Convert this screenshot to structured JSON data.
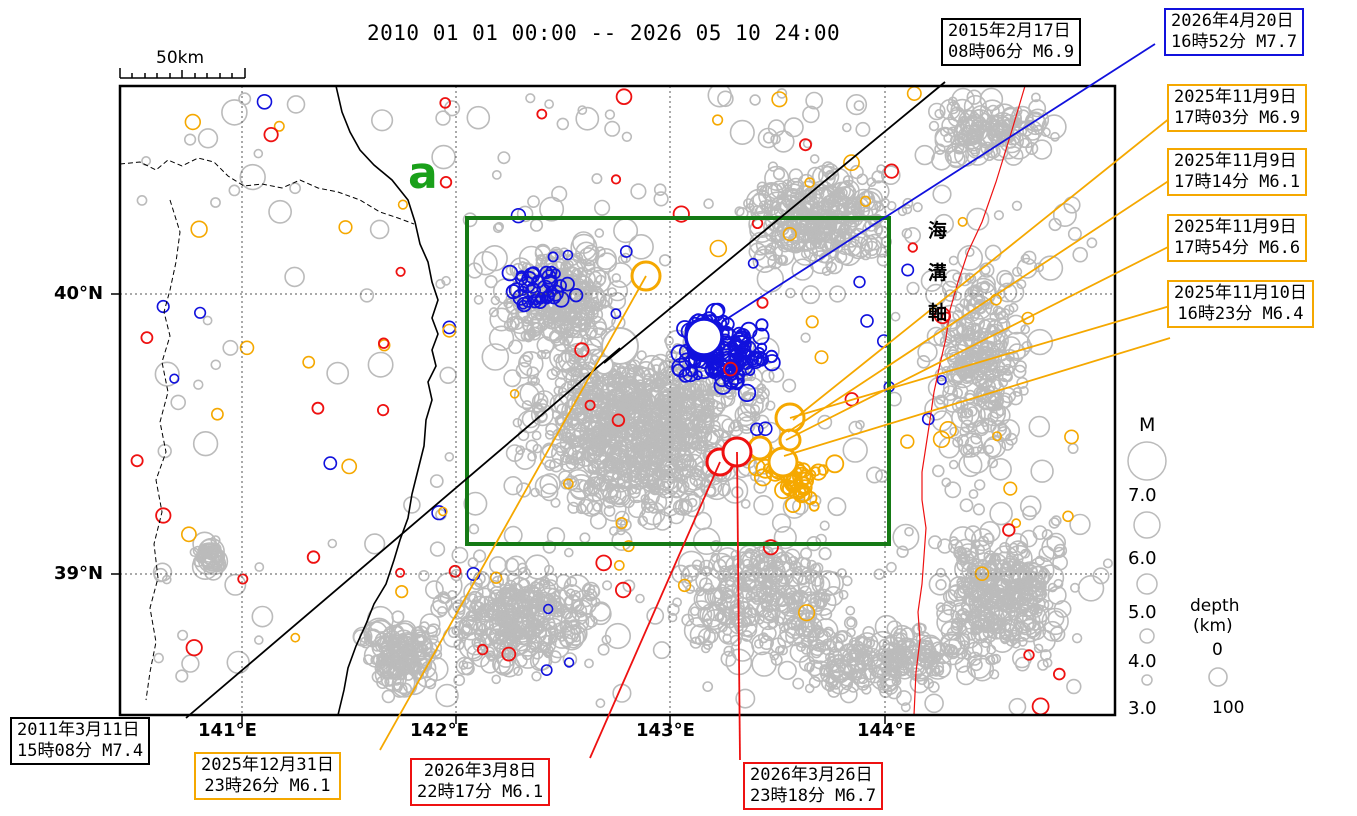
{
  "title": "2010 01 01 00:00 -- 2026 05 10 24:00",
  "scale_bar": "50km",
  "region_label": "a",
  "trench_label": [
    "海",
    "溝",
    "軸"
  ],
  "axes": {
    "lon_ticks": [
      "141°E",
      "142°E",
      "143°E",
      "144°E"
    ],
    "lat_ticks": [
      "40°N",
      "39°N"
    ]
  },
  "legend": {
    "magnitude_header": "M",
    "magnitudes": [
      "7.0",
      "6.0",
      "5.0",
      "4.0",
      "3.0"
    ],
    "depth_header": "depth\n(km)",
    "depth_title": "depth",
    "depth_unit": "(km)",
    "depth_values": [
      "0",
      "100"
    ]
  },
  "colors": {
    "background_quakes": "#bbbbbb",
    "older_mainshock": "#000000",
    "nov_2025_sequence": "#f5a800",
    "march_2026": "#ee1111",
    "april_2026": "#1111dd",
    "focus_box": "#157a15",
    "region_label": "#1aa01a",
    "trench_axis": "#ee1111"
  },
  "callouts": [
    {
      "name": "callout-2011-03-11",
      "date": "2011年3月11日",
      "detail": "15時08分 M7.4",
      "color": "#000000"
    },
    {
      "name": "callout-2015-02-17",
      "date": "2015年2月17日",
      "detail": "08時06分 M6.9",
      "color": "#000000"
    },
    {
      "name": "callout-2026-04-20",
      "date": "2026年4月20日",
      "detail": "16時52分 M7.7",
      "color": "#1111dd"
    },
    {
      "name": "callout-2025-11-09-a",
      "date": "2025年11月9日",
      "detail": "17時03分 M6.9",
      "color": "#f5a800"
    },
    {
      "name": "callout-2025-11-09-b",
      "date": "2025年11月9日",
      "detail": "17時14分 M6.1",
      "color": "#f5a800"
    },
    {
      "name": "callout-2025-11-09-c",
      "date": "2025年11月9日",
      "detail": "17時54分 M6.6",
      "color": "#f5a800"
    },
    {
      "name": "callout-2025-11-10",
      "date": "2025年11月10日",
      "detail": "16時23分 M6.4",
      "color": "#f5a800"
    },
    {
      "name": "callout-2025-12-31",
      "date": "2025年12月31日",
      "detail": "23時26分 M6.1",
      "color": "#f5a800"
    },
    {
      "name": "callout-2026-03-08",
      "date": "2026年3月8日",
      "detail": "22時17分 M6.1",
      "color": "#ee1111"
    },
    {
      "name": "callout-2026-03-26",
      "date": "2026年3月26日",
      "detail": "23時18分 M6.7",
      "color": "#ee1111"
    }
  ]
}
